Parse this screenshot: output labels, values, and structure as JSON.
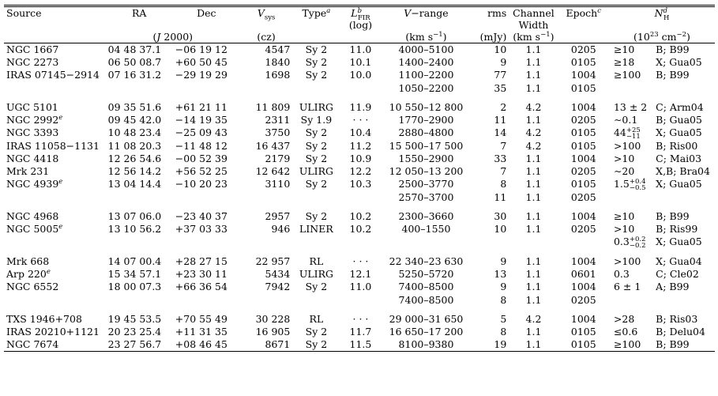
{
  "header": {
    "row1": [
      "Source",
      "RA",
      "Dec",
      "V_sys",
      "Type",
      "L_FIR",
      "V−range",
      "rms",
      "Channel",
      "Epoch",
      "N_H"
    ],
    "row2": [
      "(log)",
      "Width"
    ],
    "row3": [
      "(J 2000)",
      "(cz)",
      "(km s−1)",
      "(mJy)",
      "(km s−1)",
      "(10^23 cm−2)"
    ]
  },
  "rows": [
    {
      "src": "NGC 1667",
      "ra": "04 48 37.1",
      "dec": "−06 19 12",
      "v": "4547",
      "type": "Sy 2",
      "lfir": "11.0",
      "vr": "4000–5100",
      "rms": "10",
      "ch": "1.1",
      "ep": "0205",
      "nh": "≥10",
      "ref": "B; B99"
    },
    {
      "src": "NGC 2273",
      "ra": "06 50 08.7",
      "dec": "+60 50 45",
      "v": "1840",
      "type": "Sy 2",
      "lfir": "10.1",
      "vr": "1400–2400",
      "rms": "9",
      "ch": "1.1",
      "ep": "0105",
      "nh": "≥18",
      "ref": "X; Gua05"
    },
    {
      "src": "IRAS 07145−2914",
      "ra": "07 16 31.2",
      "dec": "−29 19 29",
      "v": "1698",
      "type": "Sy 2",
      "lfir": "10.0",
      "vr": "1100–2200",
      "rms": "77",
      "ch": "1.1",
      "ep": "1004",
      "nh": "≥100",
      "ref": "B; B99"
    },
    {
      "src": "",
      "ra": "",
      "dec": "",
      "v": "",
      "type": "",
      "lfir": "",
      "vr": "1050–2200",
      "rms": "35",
      "ch": "1.1",
      "ep": "0105",
      "nh": "",
      "ref": ""
    },
    {
      "src": "UGC 5101",
      "ra": "09 35 51.6",
      "dec": "+61 21 11",
      "v": "11 809",
      "type": "ULIRG",
      "lfir": "11.9",
      "vr": "10 550–12 800",
      "rms": "2",
      "ch": "4.2",
      "ep": "1004",
      "nh": "13 ± 2",
      "ref": "C; Arm04"
    },
    {
      "src": "NGC 2992",
      "ra": "09 45 42.0",
      "dec": "−14 19 35",
      "v": "2311",
      "type": "Sy 1.9",
      "lfir": "· · ·",
      "vr": "1770–2900",
      "rms": "11",
      "ch": "1.1",
      "ep": "0205",
      "nh": "∼0.1",
      "ref": "B; Gua05"
    },
    {
      "src": "NGC 3393",
      "ra": "10 48 23.4",
      "dec": "−25 09 43",
      "v": "3750",
      "type": "Sy 2",
      "lfir": "10.4",
      "vr": "2880–4800",
      "rms": "14",
      "ch": "4.2",
      "ep": "0105",
      "nh": "44",
      "ref": "X; Gua05"
    },
    {
      "src": "IRAS 11058−1131",
      "ra": "11 08 20.3",
      "dec": "−11 48 12",
      "v": "16 437",
      "type": "Sy 2",
      "lfir": "11.2",
      "vr": "15 500–17 500",
      "rms": "7",
      "ch": "4.2",
      "ep": "0105",
      "nh": ">100",
      "ref": "B; Ris00"
    },
    {
      "src": "NGC 4418",
      "ra": "12 26 54.6",
      "dec": "−00 52 39",
      "v": "2179",
      "type": "Sy 2",
      "lfir": "10.9",
      "vr": "1550–2900",
      "rms": "33",
      "ch": "1.1",
      "ep": "1004",
      "nh": ">10",
      "ref": "C; Mai03"
    },
    {
      "src": "Mrk 231",
      "ra": "12 56 14.2",
      "dec": "+56 52 25",
      "v": "12 642",
      "type": "ULIRG",
      "lfir": "12.2",
      "vr": "12 050–13 200",
      "rms": "7",
      "ch": "1.1",
      "ep": "0205",
      "nh": "∼20",
      "ref": "X,B; Bra04"
    },
    {
      "src": "NGC 4939",
      "ra": "13 04 14.4",
      "dec": "−10 20 23",
      "v": "3110",
      "type": "Sy 2",
      "lfir": "10.3",
      "vr": "2500–3770",
      "rms": "8",
      "ch": "1.1",
      "ep": "0105",
      "nh": "1.5",
      "ref": "X; Gua05"
    },
    {
      "src": "",
      "ra": "",
      "dec": "",
      "v": "",
      "type": "",
      "lfir": "",
      "vr": "2570–3700",
      "rms": "11",
      "ch": "1.1",
      "ep": "0205",
      "nh": "",
      "ref": ""
    },
    {
      "src": "NGC 4968",
      "ra": "13 07 06.0",
      "dec": "−23 40 37",
      "v": "2957",
      "type": "Sy 2",
      "lfir": "10.2",
      "vr": "2300–3660",
      "rms": "30",
      "ch": "1.1",
      "ep": "1004",
      "nh": "≥10",
      "ref": "B; B99"
    },
    {
      "src": "NGC 5005",
      "ra": "13 10 56.2",
      "dec": "+37 03 33",
      "v": "946",
      "type": "LINER",
      "lfir": "10.2",
      "vr": "400–1550",
      "rms": "10",
      "ch": "1.1",
      "ep": "0205",
      "nh": ">10",
      "ref": "B; Ris99"
    },
    {
      "src": "",
      "ra": "",
      "dec": "",
      "v": "",
      "type": "",
      "lfir": "",
      "vr": "",
      "rms": "",
      "ch": "",
      "ep": "",
      "nh": "0.3",
      "ref": "X; Gua05"
    },
    {
      "src": "Mrk 668",
      "ra": "14 07 00.4",
      "dec": "+28 27 15",
      "v": "22 957",
      "type": "RL",
      "lfir": "· · ·",
      "vr": "22 340–23 630",
      "rms": "9",
      "ch": "1.1",
      "ep": "1004",
      "nh": ">100",
      "ref": "X; Gua04"
    },
    {
      "src": "Arp 220",
      "ra": "15 34 57.1",
      "dec": "+23 30 11",
      "v": "5434",
      "type": "ULIRG",
      "lfir": "12.1",
      "vr": "5250–5720",
      "rms": "13",
      "ch": "1.1",
      "ep": "0601",
      "nh": "0.3",
      "ref": "C; Cle02"
    },
    {
      "src": "NGC 6552",
      "ra": "18 00 07.3",
      "dec": "+66 36 54",
      "v": "7942",
      "type": "Sy 2",
      "lfir": "11.0",
      "vr": "7400–8500",
      "rms": "9",
      "ch": "1.1",
      "ep": "1004",
      "nh": "6 ± 1",
      "ref": "A; B99"
    },
    {
      "src": "",
      "ra": "",
      "dec": "",
      "v": "",
      "type": "",
      "lfir": "",
      "vr": "7400–8500",
      "rms": "8",
      "ch": "1.1",
      "ep": "0205",
      "nh": "",
      "ref": ""
    },
    {
      "src": "TXS 1946+708",
      "ra": "19 45 53.5",
      "dec": "+70 55 49",
      "v": "30 228",
      "type": "RL",
      "lfir": "· · ·",
      "vr": "29 000–31 650",
      "rms": "5",
      "ch": "4.2",
      "ep": "1004",
      "nh": ">28",
      "ref": "B; Ris03"
    },
    {
      "src": "IRAS 20210+1121",
      "ra": "20 23 25.4",
      "dec": "+11 31 35",
      "v": "16 905",
      "type": "Sy 2",
      "lfir": "11.7",
      "vr": "16 650–17 200",
      "rms": "8",
      "ch": "1.1",
      "ep": "0105",
      "nh": "≤0.6",
      "ref": "B; Delu04"
    },
    {
      "src": "NGC 7674",
      "ra": "23 27 56.7",
      "dec": "+08 46 45",
      "v": "8671",
      "type": "Sy 2",
      "lfir": "11.5",
      "vr": "8100–9380",
      "rms": "19",
      "ch": "1.1",
      "ep": "0105",
      "nh": "≥100",
      "ref": "B; B99"
    }
  ],
  "superscripts": {
    "type_note": "a",
    "lfir_note": "b",
    "epoch_note": "c",
    "nh_note": "d",
    "src_note": "e",
    "lfir_sub": "FIR",
    "vsys_sub": "sys",
    "nh_sub": "H",
    "unit_exp": "−1",
    "nh_exp": "23",
    "nh_unit_exp": "−2",
    "ngc3393_err_up": "+25",
    "ngc3393_err_dn": "−11",
    "ngc4939_err_up": "+0.4",
    "ngc4939_err_dn": "−0.5",
    "ngc5005_err_up": "+0.2",
    "ngc5005_err_dn": "−0.2"
  }
}
